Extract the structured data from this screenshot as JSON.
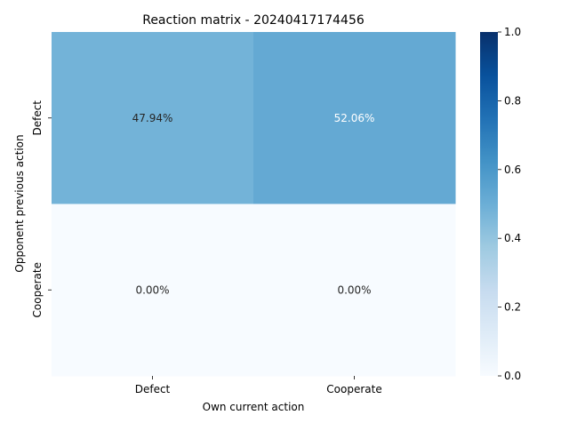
{
  "chart_data": {
    "type": "heatmap",
    "title": "Reaction matrix - 20240417174456",
    "xlabel": "Own current action",
    "ylabel": "Opponent previous action",
    "x_categories": [
      "Defect",
      "Cooperate"
    ],
    "y_categories": [
      "Defect",
      "Cooperate"
    ],
    "values": [
      [
        0.4794,
        0.5206
      ],
      [
        0.0,
        0.0
      ]
    ],
    "annotations": [
      [
        "47.94%",
        "52.06%"
      ],
      [
        "0.00%",
        "0.00%"
      ]
    ],
    "colorbar": {
      "min": 0.0,
      "max": 1.0,
      "ticks": [
        0.0,
        0.2,
        0.4,
        0.6,
        0.8,
        1.0
      ],
      "tick_labels": [
        "0.0",
        "0.2",
        "0.4",
        "0.6",
        "0.8",
        "1.0"
      ]
    },
    "colormap": "Blues",
    "colormap_stops": [
      "#f7fbff",
      "#deebf7",
      "#c6dbef",
      "#9ecae1",
      "#6baed6",
      "#4292c6",
      "#2171b5",
      "#08519c",
      "#08306b"
    ],
    "grid": false
  }
}
